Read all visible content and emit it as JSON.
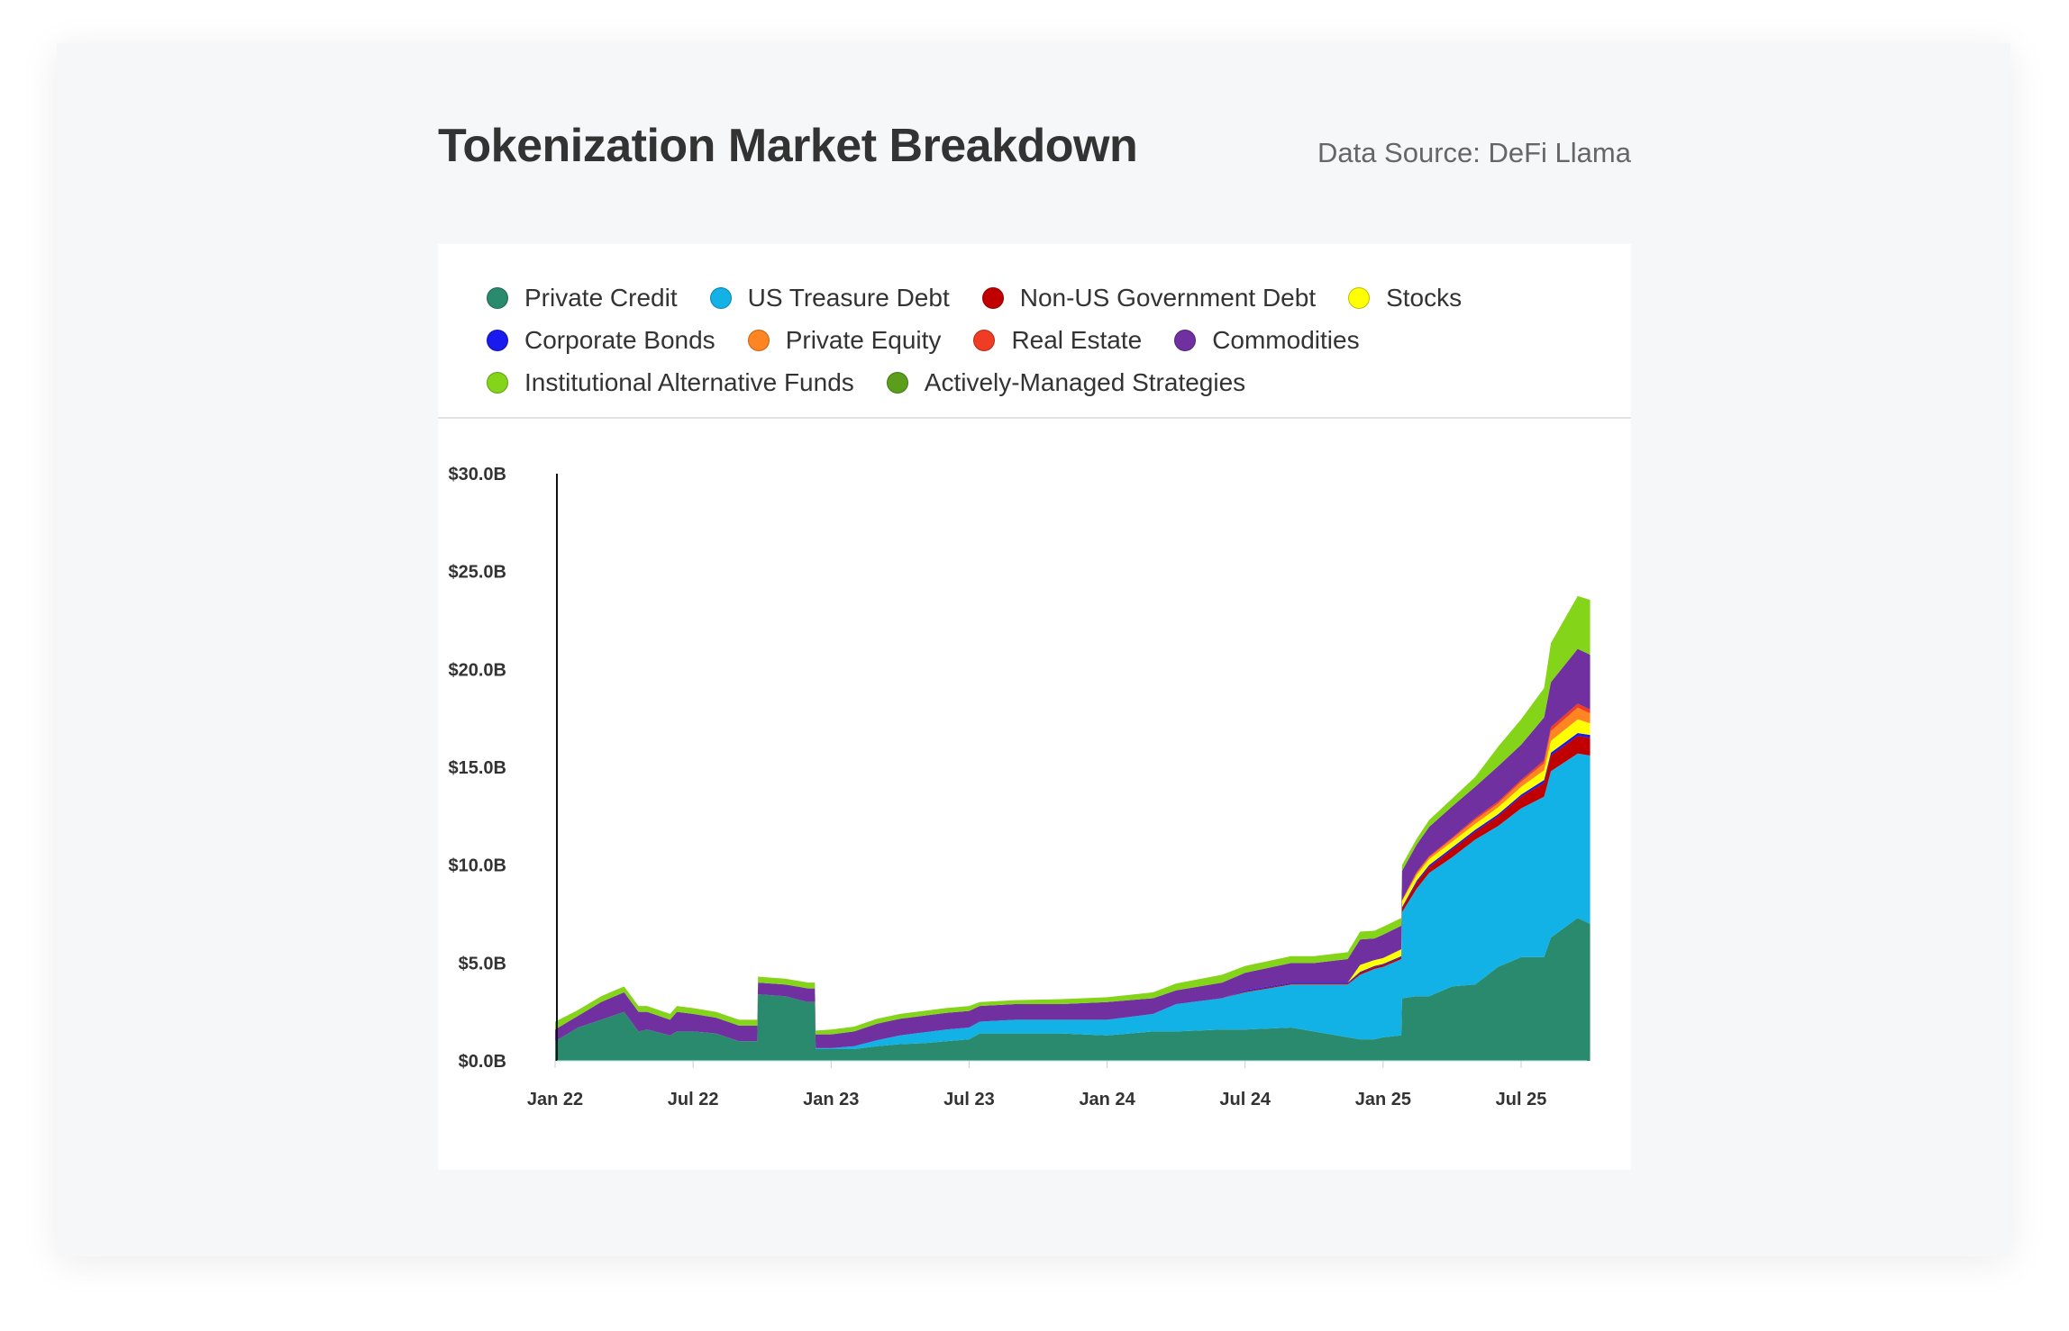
{
  "title": "Tokenization Market Breakdown",
  "source": "Data Source: DeFi Llama",
  "chart_data": {
    "type": "area",
    "stacked": true,
    "title": "Tokenization Market Breakdown",
    "xlabel": "",
    "ylabel": "",
    "ylim": [
      0,
      30
    ],
    "yticks": [
      "$0.0B",
      "$5.0B",
      "$10.0B",
      "$15.0B",
      "$20.0B",
      "$25.0B",
      "$30.0B"
    ],
    "ytick_values": [
      0,
      5,
      10,
      15,
      20,
      25,
      30
    ],
    "xticks": [
      "Jan 22",
      "Jul 22",
      "Jan 23",
      "Jul 23",
      "Jan 24",
      "Jul 24",
      "Jan 25",
      "Jul 25"
    ],
    "xtick_dates": [
      "2022-01-01",
      "2022-07-01",
      "2023-01-01",
      "2023-07-01",
      "2024-01-01",
      "2024-07-01",
      "2025-01-01",
      "2025-07-01"
    ],
    "grid": false,
    "legend_position": "top",
    "unit": "USD billions",
    "dates": [
      "2022-01-01",
      "2022-02-01",
      "2022-03-01",
      "2022-04-01",
      "2022-04-20",
      "2022-05-01",
      "2022-06-01",
      "2022-06-10",
      "2022-07-01",
      "2022-08-01",
      "2022-09-01",
      "2022-09-25",
      "2022-09-26",
      "2022-11-01",
      "2022-12-01",
      "2022-12-10",
      "2022-12-11",
      "2023-01-01",
      "2023-02-01",
      "2023-03-01",
      "2023-04-01",
      "2023-05-01",
      "2023-06-01",
      "2023-07-01",
      "2023-07-15",
      "2023-09-01",
      "2023-11-01",
      "2024-01-01",
      "2024-03-01",
      "2024-04-01",
      "2024-06-01",
      "2024-07-01",
      "2024-09-01",
      "2024-10-01",
      "2024-11-15",
      "2024-12-01",
      "2024-12-20",
      "2025-01-01",
      "2025-01-25",
      "2025-01-26",
      "2025-02-15",
      "2025-03-01",
      "2025-04-01",
      "2025-05-01",
      "2025-06-01",
      "2025-07-01",
      "2025-08-01",
      "2025-08-10",
      "2025-09-15",
      "2025-10-01"
    ],
    "series": [
      {
        "name": "Private Credit",
        "color": "#2a8a6e",
        "values": [
          1.0,
          1.7,
          2.1,
          2.5,
          1.5,
          1.6,
          1.3,
          1.5,
          1.5,
          1.4,
          1.0,
          1.0,
          3.4,
          3.3,
          3.0,
          3.0,
          0.6,
          0.6,
          0.6,
          0.75,
          0.85,
          0.9,
          1.0,
          1.1,
          1.4,
          1.4,
          1.4,
          1.3,
          1.5,
          1.5,
          1.6,
          1.6,
          1.7,
          1.5,
          1.2,
          1.1,
          1.1,
          1.2,
          1.3,
          3.2,
          3.3,
          3.3,
          3.8,
          3.9,
          4.8,
          5.3,
          5.3,
          6.3,
          7.3,
          7.0
        ]
      },
      {
        "name": "US Treasure Debt",
        "color": "#12b1e6",
        "values": [
          0,
          0,
          0,
          0,
          0,
          0,
          0,
          0,
          0,
          0,
          0,
          0,
          0,
          0,
          0,
          0,
          0.05,
          0.05,
          0.15,
          0.3,
          0.45,
          0.55,
          0.6,
          0.6,
          0.6,
          0.7,
          0.7,
          0.8,
          0.9,
          1.4,
          1.6,
          1.9,
          2.2,
          2.4,
          2.7,
          3.3,
          3.6,
          3.6,
          3.9,
          4.4,
          5.5,
          6.3,
          6.6,
          7.4,
          7.2,
          7.6,
          8.2,
          8.5,
          8.4,
          8.6
        ]
      },
      {
        "name": "Non-US Government Debt",
        "color": "#c00000",
        "values": [
          0,
          0,
          0,
          0,
          0,
          0,
          0,
          0,
          0,
          0,
          0,
          0,
          0,
          0,
          0,
          0,
          0,
          0,
          0,
          0,
          0,
          0,
          0,
          0,
          0,
          0,
          0,
          0,
          0,
          0,
          0,
          0.05,
          0.05,
          0.05,
          0.05,
          0.1,
          0.1,
          0.1,
          0.1,
          0.2,
          0.3,
          0.3,
          0.4,
          0.4,
          0.5,
          0.6,
          0.7,
          0.8,
          0.9,
          0.9
        ]
      },
      {
        "name": "Corporate Bonds",
        "color": "#1a1aee",
        "values": [
          0,
          0,
          0,
          0,
          0,
          0,
          0,
          0,
          0,
          0,
          0,
          0,
          0,
          0,
          0,
          0,
          0,
          0,
          0,
          0,
          0,
          0,
          0,
          0,
          0,
          0,
          0,
          0,
          0,
          0,
          0,
          0.05,
          0.05,
          0.05,
          0.05,
          0.05,
          0.05,
          0.05,
          0.05,
          0.05,
          0.1,
          0.1,
          0.1,
          0.1,
          0.1,
          0.1,
          0.15,
          0.15,
          0.15,
          0.15
        ]
      },
      {
        "name": "Stocks",
        "color": "#ffff00",
        "values": [
          0,
          0,
          0,
          0,
          0,
          0,
          0,
          0,
          0,
          0,
          0,
          0,
          0,
          0,
          0,
          0,
          0,
          0,
          0,
          0,
          0,
          0,
          0,
          0,
          0,
          0,
          0,
          0,
          0,
          0,
          0,
          0,
          0,
          0,
          0,
          0.35,
          0.3,
          0.3,
          0.35,
          0.3,
          0.3,
          0.3,
          0.3,
          0.3,
          0.35,
          0.4,
          0.5,
          0.6,
          0.7,
          0.6
        ]
      },
      {
        "name": "Private Equity",
        "color": "#ff8522",
        "values": [
          0,
          0,
          0,
          0,
          0,
          0,
          0,
          0,
          0,
          0,
          0,
          0,
          0,
          0,
          0,
          0,
          0,
          0,
          0,
          0,
          0,
          0,
          0,
          0,
          0,
          0,
          0,
          0,
          0,
          0,
          0,
          0,
          0,
          0,
          0,
          0,
          0,
          0,
          0,
          0.05,
          0.1,
          0.1,
          0.15,
          0.2,
          0.2,
          0.25,
          0.35,
          0.5,
          0.6,
          0.5
        ]
      },
      {
        "name": "Real Estate",
        "color": "#f03c24",
        "values": [
          0,
          0,
          0,
          0,
          0,
          0,
          0,
          0,
          0,
          0,
          0,
          0,
          0,
          0,
          0,
          0,
          0,
          0,
          0,
          0,
          0,
          0,
          0,
          0,
          0,
          0,
          0,
          0,
          0,
          0,
          0,
          0,
          0,
          0,
          0,
          0,
          0,
          0,
          0,
          0,
          0.05,
          0.05,
          0.05,
          0.1,
          0.1,
          0.1,
          0.15,
          0.2,
          0.2,
          0.2
        ]
      },
      {
        "name": "Commodities",
        "color": "#7030a0",
        "values": [
          0.6,
          0.6,
          0.9,
          1.0,
          1.0,
          0.9,
          0.8,
          1.0,
          0.9,
          0.8,
          0.8,
          0.8,
          0.6,
          0.6,
          0.7,
          0.7,
          0.7,
          0.7,
          0.75,
          0.85,
          0.85,
          0.85,
          0.85,
          0.85,
          0.8,
          0.8,
          0.8,
          0.9,
          0.8,
          0.7,
          0.8,
          0.9,
          1.0,
          1.0,
          1.2,
          1.3,
          1.1,
          1.2,
          1.2,
          1.5,
          1.4,
          1.5,
          1.6,
          1.6,
          1.8,
          1.8,
          2.2,
          2.3,
          2.8,
          2.8
        ]
      },
      {
        "name": "Institutional Alternative Funds",
        "color": "#84d419",
        "values": [
          0.4,
          0.3,
          0.3,
          0.3,
          0.3,
          0.3,
          0.3,
          0.3,
          0.3,
          0.3,
          0.3,
          0.3,
          0.3,
          0.3,
          0.3,
          0.3,
          0.2,
          0.25,
          0.25,
          0.25,
          0.25,
          0.25,
          0.25,
          0.25,
          0.2,
          0.2,
          0.25,
          0.25,
          0.3,
          0.35,
          0.4,
          0.35,
          0.35,
          0.35,
          0.35,
          0.4,
          0.4,
          0.4,
          0.4,
          0.3,
          0.3,
          0.35,
          0.4,
          0.5,
          1.0,
          1.3,
          1.5,
          2.0,
          2.7,
          2.8
        ]
      },
      {
        "name": "Actively-Managed Strategies",
        "color": "#5a9e1c",
        "values": [
          0,
          0,
          0,
          0,
          0,
          0,
          0,
          0,
          0,
          0,
          0,
          0,
          0,
          0,
          0,
          0,
          0,
          0,
          0,
          0,
          0,
          0,
          0,
          0,
          0,
          0,
          0,
          0,
          0,
          0,
          0,
          0,
          0,
          0,
          0,
          0,
          0,
          0,
          0,
          0,
          0,
          0,
          0,
          0,
          0,
          0,
          0,
          0,
          0,
          0
        ]
      }
    ]
  },
  "legend_rows": [
    [
      0,
      1,
      2,
      4
    ],
    [
      3,
      5,
      6,
      7
    ],
    [
      8,
      9
    ]
  ]
}
